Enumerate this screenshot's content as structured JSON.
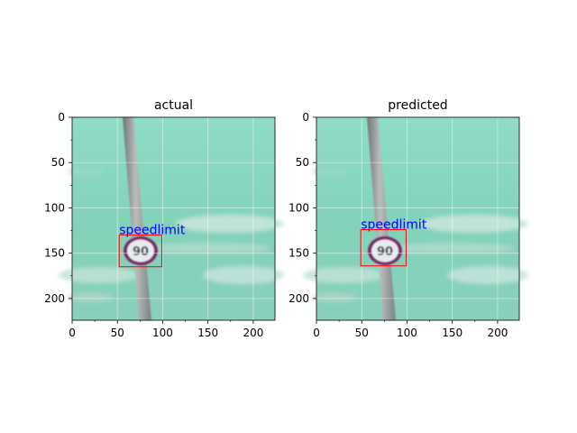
{
  "panels": [
    {
      "title": "actual",
      "label": "speedlimit",
      "sign_text": "90",
      "box": {
        "xmin": 52,
        "ymin": 130,
        "xmax": 99,
        "ymax": 165
      }
    },
    {
      "title": "predicted",
      "label": "speedlimit",
      "sign_text": "90",
      "box": {
        "xmin": 49,
        "ymin": 124,
        "xmax": 99,
        "ymax": 164
      }
    }
  ],
  "axes": {
    "xlim": [
      0,
      224
    ],
    "ylim": [
      224,
      0
    ],
    "xticks": [
      "0",
      "50",
      "100",
      "150",
      "200"
    ],
    "yticks": [
      "0",
      "50",
      "100",
      "150",
      "200"
    ],
    "grid": true
  },
  "colors": {
    "sky": "#86d5bd",
    "box": "#ff0000",
    "label": "#0000ff",
    "pole": "#8f9593",
    "sign_ring": "#7a2a6a"
  }
}
